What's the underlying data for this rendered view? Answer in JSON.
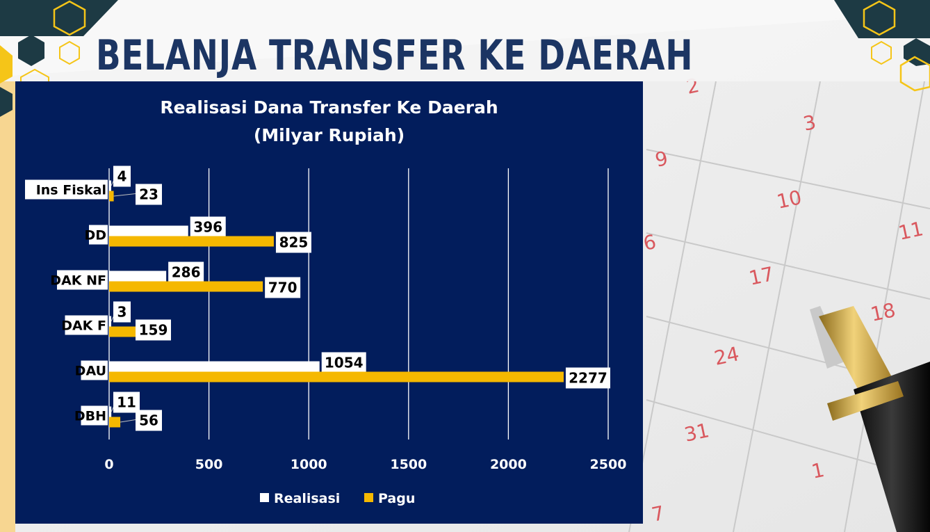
{
  "slide": {
    "title": "BELANJA TRANSFER KE DAERAH"
  },
  "colors": {
    "navy_panel": "#021d5c",
    "title_navy": "#1c3563",
    "realisasi": "#ffffff",
    "pagu": "#f5b800",
    "calendar_number": "#d9585e"
  },
  "calendar": {
    "numbers": [
      "2",
      "3",
      "9",
      "10",
      "6",
      "11",
      "17",
      "18",
      "24",
      "31",
      "1",
      "7"
    ]
  },
  "chart_data": {
    "type": "bar",
    "orientation": "horizontal",
    "title": "Realisasi Dana Transfer Ke Daerah",
    "subtitle": "(Milyar Rupiah)",
    "categories": [
      "Ins Fiskal",
      "DD",
      "DAK NF",
      "DAK F",
      "DAU",
      "DBH"
    ],
    "series": [
      {
        "name": "Realisasi",
        "values": [
          4,
          396,
          286,
          3,
          1054,
          11
        ]
      },
      {
        "name": "Pagu",
        "values": [
          23,
          825,
          770,
          159,
          2277,
          56
        ]
      }
    ],
    "xlim": [
      0,
      2500
    ],
    "xticks": [
      0,
      500,
      1000,
      1500,
      2000,
      2500
    ],
    "grid": "vertical",
    "legend": "bottom"
  }
}
